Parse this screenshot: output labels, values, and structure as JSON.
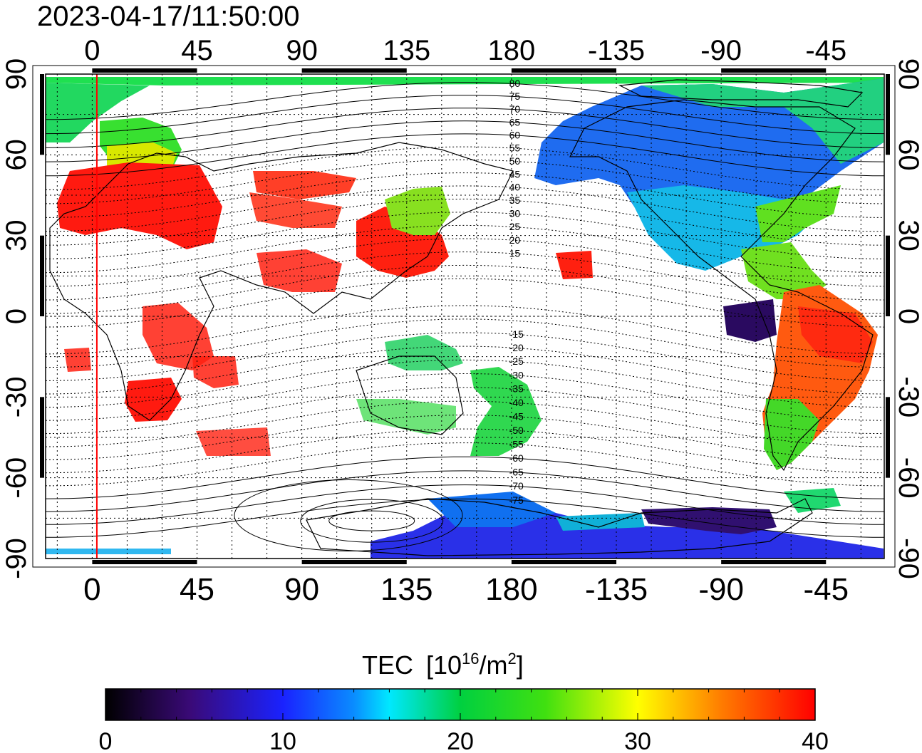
{
  "timestamp": "2023-04-17/11:50:00",
  "colorbar": {
    "title": "TEC",
    "unit_pre": "[10",
    "unit_exp1": "16",
    "unit_mid": "/m",
    "unit_exp2": "2",
    "unit_post": "]",
    "ticks": [
      "0",
      "10",
      "20",
      "30",
      "40"
    ],
    "min": 0,
    "max": 40
  },
  "axes": {
    "top_ticks": [
      "0",
      "45",
      "90",
      "135",
      "180",
      "-135",
      "-90",
      "-45"
    ],
    "bottom_ticks": [
      "0",
      "45",
      "90",
      "135",
      "180",
      "-135",
      "-90",
      "-45"
    ],
    "left_ticks": [
      "90",
      "60",
      "30",
      "0",
      "-30",
      "-60",
      "-90"
    ],
    "right_ticks": [
      "90",
      "60",
      "30",
      "0",
      "-30",
      "-60",
      "-90"
    ],
    "lon_range": [
      -20,
      340
    ],
    "lat_range": [
      -90,
      90
    ]
  },
  "mag_lat_labels": [
    "80",
    "75",
    "70",
    "65",
    "60",
    "55",
    "50",
    "45",
    "40",
    "35",
    "30",
    "25",
    "20",
    "15",
    "-15",
    "-20",
    "-25",
    "-30",
    "-35",
    "-40",
    "-45",
    "-50",
    "-55",
    "-60",
    "-65",
    "-70",
    "-75"
  ],
  "marker_meridian_lon": 2
}
